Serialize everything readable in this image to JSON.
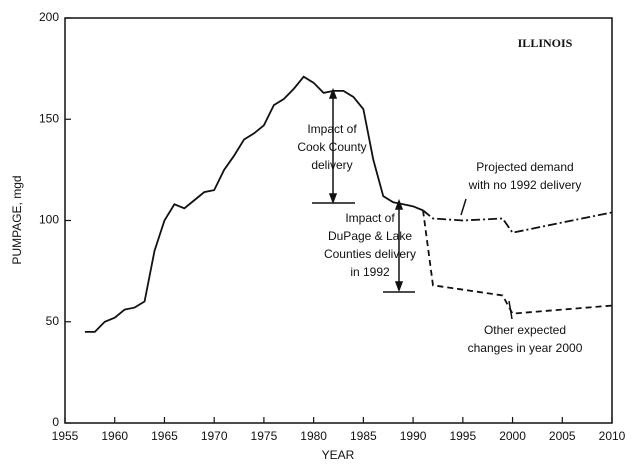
{
  "chart_data": {
    "type": "line",
    "xlabel": "YEAR",
    "ylabel": "PUMPAGE, mgd",
    "xlim": [
      1955,
      2010
    ],
    "ylim": [
      0,
      200
    ],
    "xticks": [
      1955,
      1960,
      1965,
      1970,
      1975,
      1980,
      1985,
      1990,
      1995,
      2000,
      2005,
      2010
    ],
    "yticks": [
      0,
      50,
      100,
      150,
      200
    ],
    "series": [
      {
        "color": "#111111",
        "dash": "solid",
        "x": [
          1957,
          1958,
          1959,
          1960,
          1961,
          1962,
          1963,
          1964,
          1965,
          1966,
          1967,
          1968,
          1969,
          1970,
          1971,
          1972,
          1973,
          1974,
          1975,
          1976,
          1977,
          1978,
          1979,
          1980,
          1981,
          1982,
          1983,
          1984,
          1985,
          1986,
          1987,
          1988,
          1989,
          1990,
          1991
        ],
        "values": [
          45,
          45,
          50,
          52,
          56,
          57,
          60,
          85,
          100,
          108,
          106,
          110,
          114,
          115,
          125,
          132,
          140,
          143,
          147,
          157,
          160,
          165,
          171,
          168,
          163,
          164,
          164,
          161,
          155,
          130,
          112,
          109,
          108,
          107,
          105
        ]
      },
      {
        "color": "#111111",
        "dash": "dashdot",
        "x": [
          1991,
          1992,
          1995,
          1999,
          2000,
          2010
        ],
        "values": [
          105,
          101,
          100,
          101,
          94,
          104
        ]
      },
      {
        "color": "#111111",
        "dash": "dashed",
        "x": [
          1991,
          1992,
          1999,
          2000,
          2010
        ],
        "values": [
          105,
          68,
          63,
          54,
          58
        ]
      }
    ],
    "annotations": [
      [
        "ILLINOIS"
      ],
      [
        "Impact of",
        "Cook County",
        "delivery"
      ],
      [
        "Impact of",
        "DuPage & Lake",
        "Counties delivery",
        "in 1992"
      ],
      [
        "Projected demand",
        "with no 1992 delivery"
      ],
      [
        "Other expected",
        "changes in year 2000"
      ]
    ]
  }
}
